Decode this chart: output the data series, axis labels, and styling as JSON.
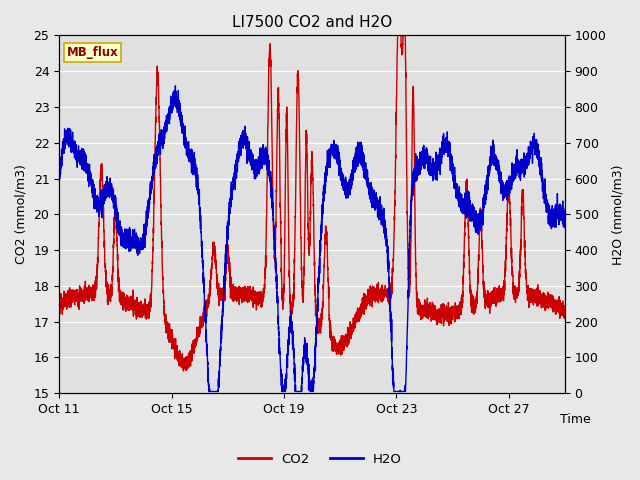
{
  "title": "LI7500 CO2 and H2O",
  "xlabel": "Time",
  "ylabel_left": "CO2 (mmol/m3)",
  "ylabel_right": "H2O (mmol/m3)",
  "ylim_left": [
    15.0,
    25.0
  ],
  "ylim_right": [
    0,
    1000
  ],
  "yticks_left": [
    15.0,
    16.0,
    17.0,
    18.0,
    19.0,
    20.0,
    21.0,
    22.0,
    23.0,
    24.0,
    25.0
  ],
  "yticks_right": [
    0,
    100,
    200,
    300,
    400,
    500,
    600,
    700,
    800,
    900,
    1000
  ],
  "xtick_labels": [
    "Oct 11",
    "Oct 15",
    "Oct 19",
    "Oct 23",
    "Oct 27"
  ],
  "xtick_positions": [
    0,
    4,
    8,
    12,
    16
  ],
  "xlim": [
    0,
    18
  ],
  "co2_color": "#cc0000",
  "h2o_color": "#0000cc",
  "fig_bg_color": "#e8e8e8",
  "plot_bg_color": "#e0e0e0",
  "grid_color": "#ffffff",
  "legend_box_facecolor": "#ffffcc",
  "legend_box_edgecolor": "#ccaa00",
  "legend_text": "MB_flux",
  "legend_text_color": "#880000",
  "title_fontsize": 11,
  "axis_label_fontsize": 9,
  "tick_fontsize": 9,
  "line_width": 1.0,
  "n_points": 5000
}
